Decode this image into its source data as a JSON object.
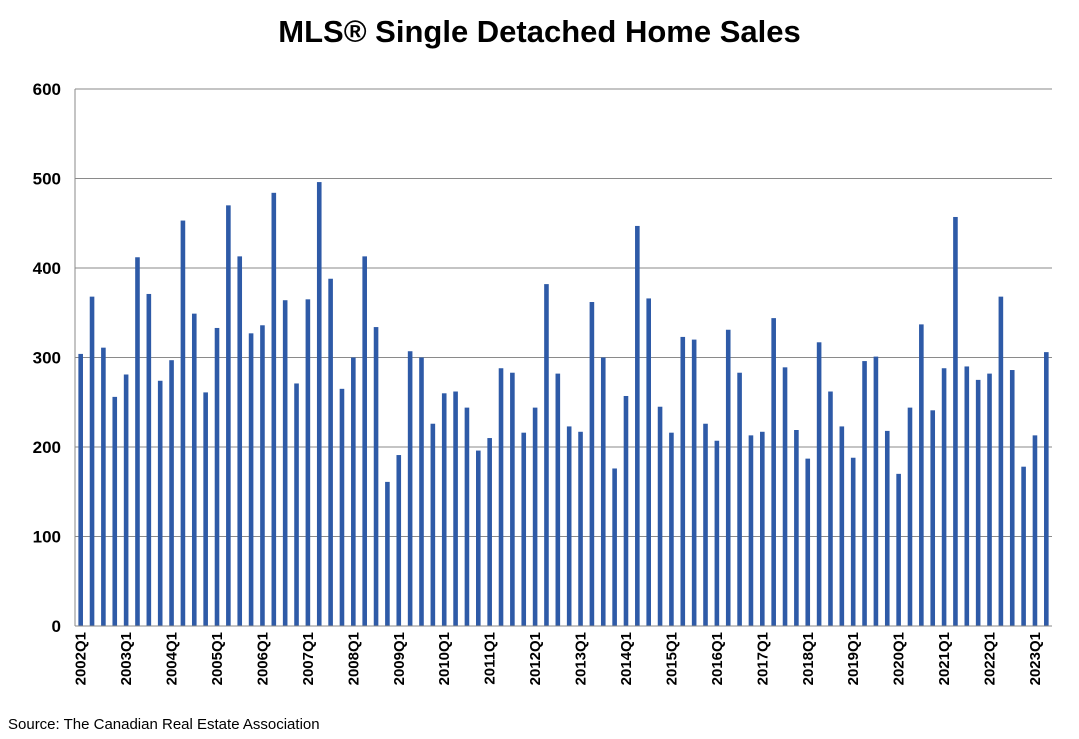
{
  "chart_data": {
    "type": "bar",
    "title": "MLS® Single Detached Home Sales",
    "source": "Source: The Canadian Real Estate Association",
    "xlabel": "",
    "ylabel": "",
    "ylim": [
      0,
      600
    ],
    "yticks": [
      0,
      100,
      200,
      300,
      400,
      500,
      600
    ],
    "grid": true,
    "bar_color": "#2E5AA7",
    "categories": [
      "2002Q1",
      "2002Q2",
      "2002Q3",
      "2002Q4",
      "2003Q1",
      "2003Q2",
      "2003Q3",
      "2003Q4",
      "2004Q1",
      "2004Q2",
      "2004Q3",
      "2004Q4",
      "2005Q1",
      "2005Q2",
      "2005Q3",
      "2005Q4",
      "2006Q1",
      "2006Q2",
      "2006Q3",
      "2006Q4",
      "2007Q1",
      "2007Q2",
      "2007Q3",
      "2007Q4",
      "2008Q1",
      "2008Q2",
      "2008Q3",
      "2008Q4",
      "2009Q1",
      "2009Q2",
      "2009Q3",
      "2009Q4",
      "2010Q1",
      "2010Q2",
      "2010Q3",
      "2010Q4",
      "2011Q1",
      "2011Q2",
      "2011Q3",
      "2011Q4",
      "2012Q1",
      "2012Q2",
      "2012Q3",
      "2012Q4",
      "2013Q1",
      "2013Q2",
      "2013Q3",
      "2013Q4",
      "2014Q1",
      "2014Q2",
      "2014Q3",
      "2014Q4",
      "2015Q1",
      "2015Q2",
      "2015Q3",
      "2015Q4",
      "2016Q1",
      "2016Q2",
      "2016Q3",
      "2016Q4",
      "2017Q1",
      "2017Q2",
      "2017Q3",
      "2017Q4",
      "2018Q1",
      "2018Q2",
      "2018Q3",
      "2018Q4",
      "2019Q1",
      "2019Q2",
      "2019Q3",
      "2019Q4",
      "2020Q1",
      "2020Q2",
      "2020Q3",
      "2020Q4",
      "2021Q1",
      "2021Q2",
      "2021Q3",
      "2021Q4",
      "2022Q1",
      "2022Q2",
      "2022Q3",
      "2022Q4",
      "2023Q1",
      "2023Q2"
    ],
    "shown_tick_labels": [
      "2002Q1",
      "2003Q1",
      "2004Q1",
      "2005Q1",
      "2006Q1",
      "2007Q1",
      "2008Q1",
      "2009Q1",
      "2010Q1",
      "2011Q1",
      "2012Q1",
      "2013Q1",
      "2014Q1",
      "2015Q1",
      "2016Q1",
      "2017Q1",
      "2018Q1",
      "2019Q1",
      "2020Q1",
      "2021Q1",
      "2022Q1",
      "2023Q1"
    ],
    "values": [
      304,
      368,
      311,
      256,
      281,
      412,
      371,
      274,
      297,
      453,
      349,
      261,
      333,
      470,
      413,
      327,
      336,
      484,
      364,
      271,
      365,
      496,
      388,
      265,
      300,
      413,
      334,
      161,
      191,
      307,
      300,
      226,
      260,
      262,
      244,
      196,
      210,
      288,
      283,
      216,
      244,
      382,
      282,
      223,
      217,
      362,
      300,
      176,
      257,
      447,
      366,
      245,
      216,
      323,
      320,
      226,
      207,
      331,
      283,
      213,
      217,
      344,
      289,
      219,
      187,
      317,
      262,
      223,
      188,
      296,
      301,
      218,
      170,
      244,
      337,
      241,
      288,
      457,
      290,
      275,
      282,
      368,
      286,
      178,
      213,
      306
    ]
  }
}
